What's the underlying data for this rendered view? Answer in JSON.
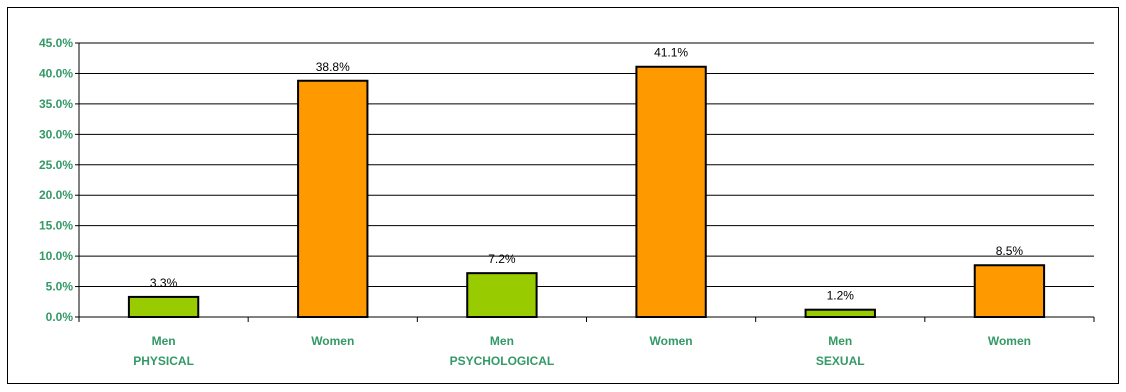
{
  "chart_data": {
    "type": "bar",
    "title": "",
    "xlabel": "",
    "ylabel": "",
    "ylim": [
      0,
      45
    ],
    "ytick_step": 5,
    "ytick_labels": [
      "0.0%",
      "5.0%",
      "10.0%",
      "15.0%",
      "20.0%",
      "25.0%",
      "30.0%",
      "35.0%",
      "40.0%",
      "45.0%"
    ],
    "grid": true,
    "legend": "none",
    "categories": [
      "Men",
      "Women",
      "Men",
      "Women",
      "Men",
      "Women"
    ],
    "groups": [
      "PHYSICAL",
      "PSYCHOLOGICAL",
      "SEXUAL"
    ],
    "values": [
      3.3,
      38.8,
      7.2,
      41.1,
      1.2,
      8.5
    ],
    "data_labels": [
      "3.3%",
      "38.8%",
      "7.2%",
      "41.1%",
      "1.2%",
      "8.5%"
    ],
    "colors": {
      "men": "#99CC00",
      "women": "#FF9900",
      "axis_text": "#339966",
      "grid": "#000000"
    }
  }
}
